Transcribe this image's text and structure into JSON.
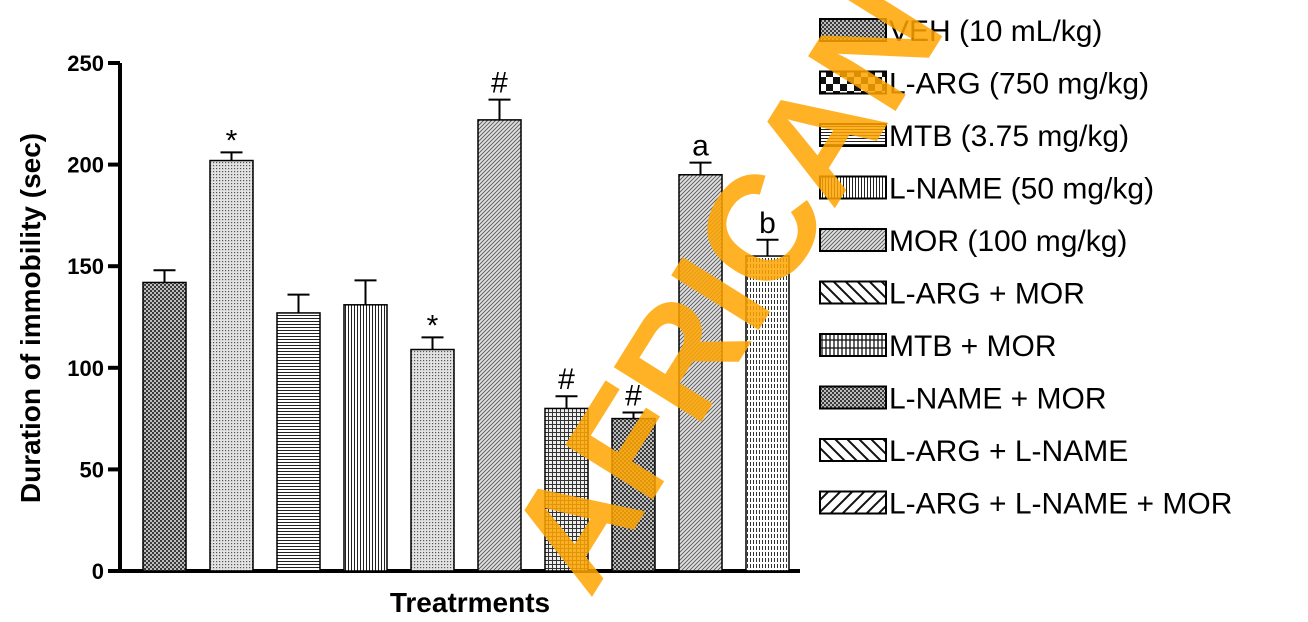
{
  "chart_data": {
    "type": "bar",
    "title": "",
    "xlabel": "Treatrments",
    "ylabel": "Duration of immobility (sec)",
    "ylim": [
      0,
      250
    ],
    "yticks": [
      0,
      50,
      100,
      150,
      200,
      250
    ],
    "grid": false,
    "legend_position": "right",
    "categories": [
      "VEH (10 mL/kg)",
      "L-ARG (750 mg/kg)",
      "MTB (3.75 mg/kg)",
      "L-NAME (50 mg/kg)",
      "MOR (100 mg/kg)",
      "L-ARG + MOR",
      "MTB + MOR",
      "L-NAME + MOR",
      "L-ARG + L-NAME",
      "L-ARG + L-NAME + MOR"
    ],
    "values": [
      142,
      202,
      127,
      131,
      109,
      222,
      80,
      75,
      195,
      155
    ],
    "errors": [
      6,
      4,
      9,
      12,
      6,
      10,
      6,
      3,
      6,
      8
    ],
    "annotations": [
      "",
      "*",
      "",
      "",
      "*",
      "#",
      "#",
      "#",
      "a",
      "b"
    ],
    "patterns": [
      "checker-dark",
      "dots-light",
      "hlines",
      "vlines",
      "dots-light",
      "diag",
      "grid",
      "checker-dark",
      "diag",
      "vdash"
    ]
  },
  "watermark": {
    "text": "AFRICAN DIGITAL HEALTH REPOSITORY PROJECT",
    "color": "#ffa500"
  }
}
